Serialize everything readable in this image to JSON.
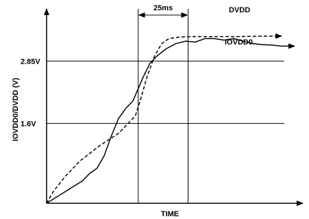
{
  "chart_data": {
    "type": "line",
    "xlabel": "TIME",
    "ylabel": "IOVDD0/DVDD (V)",
    "yticks": [
      {
        "value": 1.6,
        "label": "1.6V"
      },
      {
        "value": 2.85,
        "label": "2.85V"
      }
    ],
    "xlim": [
      0,
      100
    ],
    "ylim": [
      0,
      3.8
    ],
    "annotation": {
      "label": "25ms",
      "x_start": 38.2,
      "x_end": 59.0
    },
    "series": [
      {
        "name": "DVDD",
        "line": "dashed",
        "x": [
          0,
          3,
          8,
          14,
          22,
          30,
          37,
          39,
          42,
          45,
          48,
          51,
          55,
          60,
          70,
          80,
          90,
          98
        ],
        "y": [
          0,
          0.25,
          0.55,
          0.85,
          1.15,
          1.4,
          1.75,
          2.05,
          2.55,
          2.95,
          3.2,
          3.3,
          3.33,
          3.34,
          3.34,
          3.34,
          3.35,
          3.35
        ]
      },
      {
        "name": "IOVDD0",
        "line": "solid",
        "x": [
          0,
          5,
          10,
          15,
          18,
          21,
          24,
          27,
          30,
          33,
          36,
          40,
          43,
          46,
          50,
          54,
          58,
          62,
          66,
          70,
          74,
          78,
          82,
          86,
          90,
          94,
          98
        ],
        "y": [
          0,
          0.15,
          0.3,
          0.45,
          0.6,
          0.7,
          0.95,
          1.35,
          1.7,
          1.9,
          2.05,
          2.5,
          2.8,
          2.95,
          3.1,
          3.2,
          3.25,
          3.23,
          3.3,
          3.3,
          3.27,
          3.3,
          3.25,
          3.2,
          3.18,
          3.17,
          3.15
        ]
      }
    ]
  }
}
